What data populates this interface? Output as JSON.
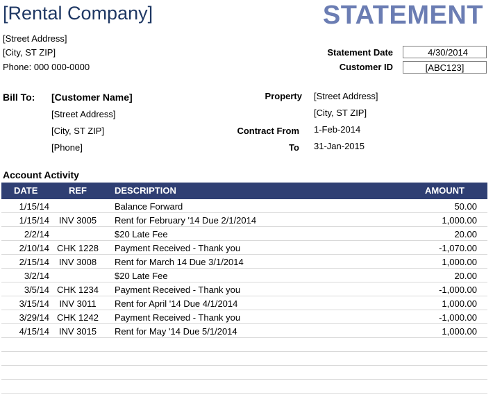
{
  "header": {
    "company": "[Rental Company]",
    "title": "STATEMENT",
    "street": "[Street Address]",
    "city": "[City, ST  ZIP]",
    "phone": "Phone: 000 000-0000"
  },
  "meta": {
    "statement_date_label": "Statement Date",
    "statement_date": "4/30/2014",
    "customer_id_label": "Customer ID",
    "customer_id": "[ABC123]"
  },
  "bill_to": {
    "label": "Bill To:",
    "name": "[Customer Name]",
    "street": "[Street Address]",
    "city": "[City, ST  ZIP]",
    "phone": "[Phone]"
  },
  "property": {
    "property_label": "Property",
    "street": "[Street Address]",
    "city": "[City, ST  ZIP]",
    "contract_from_label": "Contract From",
    "contract_from": "1-Feb-2014",
    "to_label": "To",
    "to": "31-Jan-2015"
  },
  "activity": {
    "title": "Account Activity",
    "columns": {
      "date": "DATE",
      "ref": "REF",
      "description": "DESCRIPTION",
      "amount": "AMOUNT"
    },
    "rows": [
      {
        "date": "1/15/14",
        "ref": "",
        "description": "Balance Forward",
        "amount": "50.00"
      },
      {
        "date": "1/15/14",
        "ref": "INV 3005",
        "description": "Rent for February '14 Due 2/1/2014",
        "amount": "1,000.00"
      },
      {
        "date": "2/2/14",
        "ref": "",
        "description": "$20 Late Fee",
        "amount": "20.00"
      },
      {
        "date": "2/10/14",
        "ref": "CHK 1228",
        "description": "Payment Received - Thank you",
        "amount": "-1,070.00"
      },
      {
        "date": "2/15/14",
        "ref": "INV 3008",
        "description": "Rent for March 14 Due 3/1/2014",
        "amount": "1,000.00"
      },
      {
        "date": "3/2/14",
        "ref": "",
        "description": "$20 Late Fee",
        "amount": "20.00"
      },
      {
        "date": "3/5/14",
        "ref": "CHK 1234",
        "description": "Payment Received - Thank you",
        "amount": "-1,000.00"
      },
      {
        "date": "3/15/14",
        "ref": "INV 3011",
        "description": "Rent for April '14 Due 4/1/2014",
        "amount": "1,000.00"
      },
      {
        "date": "3/29/14",
        "ref": "CHK 1242",
        "description": "Payment Received - Thank you",
        "amount": "-1,000.00"
      },
      {
        "date": "4/15/14",
        "ref": "INV 3015",
        "description": "Rent for May '14 Due 5/1/2014",
        "amount": "1,000.00"
      }
    ]
  }
}
